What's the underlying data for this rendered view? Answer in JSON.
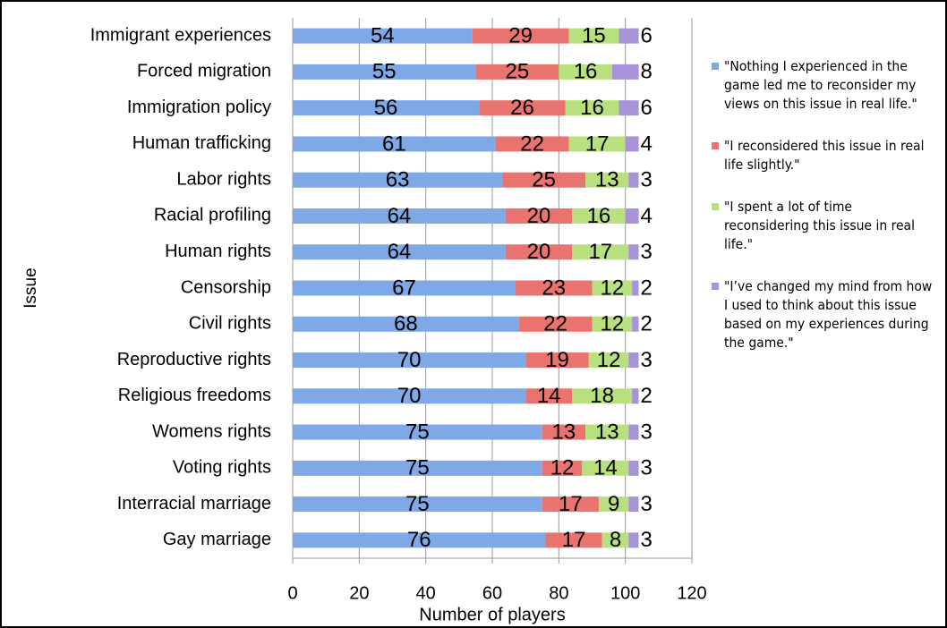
{
  "chart_data": {
    "type": "stacked_barh",
    "y_label": "Issue",
    "x_label": "Number of players",
    "categories": [
      "Immigrant experiences",
      "Forced migration",
      "Immigration policy",
      "Human trafficking",
      "Labor rights",
      "Racial profiling",
      "Human rights",
      "Censorship",
      "Civil rights",
      "Reproductive rights",
      "Religious freedoms",
      "Womens rights",
      "Voting rights",
      "Interracial marriage",
      "Gay marriage"
    ],
    "series": [
      {
        "name": "\"Nothing I experienced in the game led me to reconsider my views on this issue in real life.\"",
        "color": "#7ea8e6",
        "values": [
          54,
          55,
          56,
          61,
          63,
          64,
          64,
          67,
          68,
          70,
          70,
          75,
          75,
          75,
          76
        ]
      },
      {
        "name": "\"I reconsidered this issue in real life slightly.\"",
        "color": "#e9736f",
        "values": [
          29,
          25,
          26,
          22,
          25,
          20,
          20,
          23,
          22,
          19,
          14,
          13,
          12,
          17,
          17
        ]
      },
      {
        "name": "\"I spent a lot of time reconsidering this issue in real life.\"",
        "color": "#b9e07e",
        "values": [
          15,
          16,
          16,
          17,
          13,
          16,
          17,
          12,
          12,
          12,
          18,
          13,
          14,
          9,
          8
        ]
      },
      {
        "name": "\"I’ve changed my mind from how I used to think about this issue based on my experiences during the game.\"",
        "color": "#a892d8",
        "values": [
          6,
          8,
          6,
          4,
          3,
          4,
          3,
          2,
          2,
          3,
          2,
          3,
          3,
          3,
          3
        ]
      }
    ],
    "xlim": [
      0,
      120
    ],
    "xticks": [
      0,
      20,
      40,
      60,
      80,
      100,
      120
    ],
    "grid": true,
    "legend": "right"
  }
}
